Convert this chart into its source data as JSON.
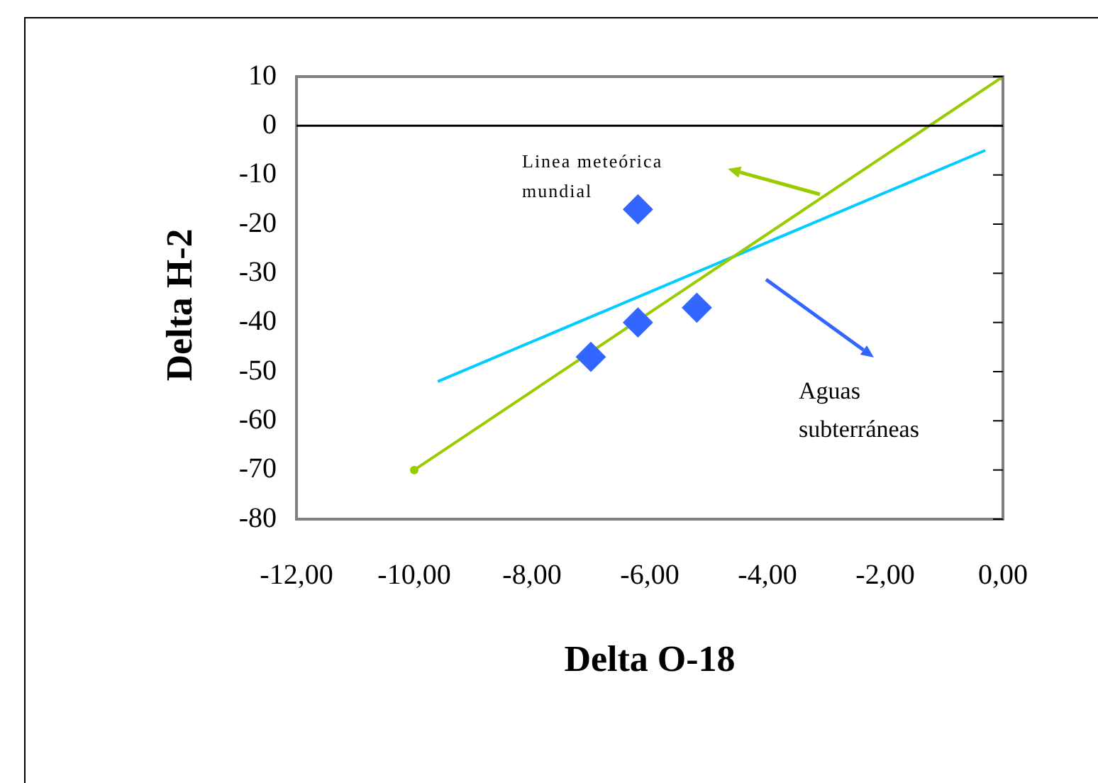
{
  "chart_data": {
    "type": "scatter",
    "xlabel": "Delta O-18",
    "ylabel": "Delta H-2",
    "xlim": [
      -12,
      0
    ],
    "xticks": [
      {
        "value": -12,
        "label": "-12,00"
      },
      {
        "value": -10,
        "label": "-10,00"
      },
      {
        "value": -8,
        "label": "-8,00"
      },
      {
        "value": -6,
        "label": "-6,00"
      },
      {
        "value": -4,
        "label": "-4,00"
      },
      {
        "value": -2,
        "label": "-2,00"
      },
      {
        "value": 0,
        "label": "0,00"
      }
    ],
    "ylim": [
      -80,
      10
    ],
    "yticks": [
      -80,
      -70,
      -60,
      -50,
      -40,
      -30,
      -20,
      -10,
      0,
      10
    ],
    "grid": false,
    "legend": false,
    "series": [
      {
        "color": "#3366ff",
        "marker": "diamond",
        "x": [
          -7.0,
          -6.2,
          -5.2,
          -6.2
        ],
        "values": [
          -47,
          -40,
          -37,
          -17
        ]
      },
      {
        "type": "line",
        "color": "#99cc00",
        "marker": "circle",
        "x": [
          -10,
          0
        ],
        "values": [
          -70,
          10
        ]
      },
      {
        "type": "line",
        "color": "#00ccff",
        "marker": "none",
        "x": [
          -9.6,
          -0.3
        ],
        "values": [
          -52,
          -5
        ]
      }
    ],
    "ref_lines": [
      {
        "axis": "y",
        "value": 0,
        "color": "#000000"
      }
    ],
    "annotations": [
      "Linea meteórica mundial",
      "Aguas subterráneas"
    ]
  }
}
